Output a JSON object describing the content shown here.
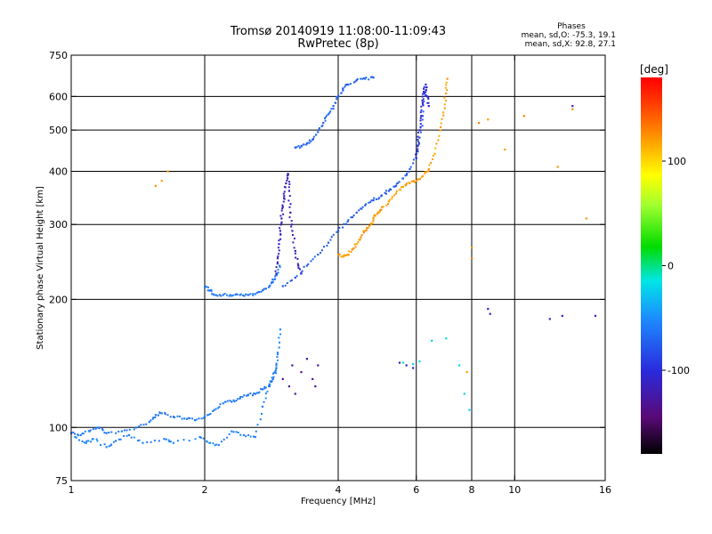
{
  "chart_data": {
    "type": "scatter",
    "title": "Tromsø 20140919 11:08:00-11:09:43",
    "subtitle": "RwPretec (8p)",
    "info_title": "Phases",
    "info_lines": [
      "mean, sd,O: -75.3, 19.1",
      "mean, sd,X:  92.8, 27.1"
    ],
    "xlabel": "Frequency [MHz]",
    "ylabel": "Stationary phase Virtual Height [km]",
    "x_scale": "log",
    "y_scale": "log",
    "xlim": [
      1,
      16
    ],
    "ylim": [
      75,
      750
    ],
    "x_ticks": [
      {
        "value": 1,
        "label": "1"
      },
      {
        "value": 2,
        "label": "2"
      },
      {
        "value": 4,
        "label": "4"
      },
      {
        "value": 6,
        "label": "6"
      },
      {
        "value": 8,
        "label": "8"
      },
      {
        "value": 10,
        "label": "10"
      },
      {
        "value": 16,
        "label": "16"
      }
    ],
    "y_ticks": [
      {
        "value": 75,
        "label": "75"
      },
      {
        "value": 100,
        "label": "100"
      },
      {
        "value": 200,
        "label": "200"
      },
      {
        "value": 300,
        "label": "300"
      },
      {
        "value": 400,
        "label": "400"
      },
      {
        "value": 500,
        "label": "500"
      },
      {
        "value": 600,
        "label": "600"
      },
      {
        "value": 750,
        "label": "750"
      }
    ],
    "grid_x": [
      2,
      4,
      6,
      8,
      10
    ],
    "grid_y": [
      100,
      200,
      300,
      400,
      500,
      600
    ],
    "colorbar": {
      "label": "[deg]",
      "range": [
        -180,
        180
      ],
      "ticks": [
        {
          "value": 100,
          "label": "100"
        },
        {
          "value": 0,
          "label": "0"
        },
        {
          "value": -100,
          "label": "-100"
        }
      ]
    },
    "series": [
      {
        "role": "e-trace",
        "phase": -60,
        "x": [
          1.0,
          1.05,
          1.1,
          1.15,
          1.2,
          1.3,
          1.4,
          1.5,
          1.55,
          1.6,
          1.7,
          1.8,
          1.9,
          2.0,
          2.1,
          2.2,
          2.3,
          2.4,
          2.5,
          2.6,
          2.7,
          2.8,
          2.85,
          2.9
        ],
        "y": [
          97,
          96,
          98,
          100,
          97,
          98,
          100,
          103,
          107,
          108,
          106,
          105,
          104,
          106,
          110,
          114,
          115,
          117,
          119,
          120,
          123,
          126,
          130,
          138
        ]
      },
      {
        "role": "es-scatter",
        "phase": -55,
        "x": [
          1.02,
          1.08,
          1.12,
          1.2,
          1.26,
          1.35,
          1.45,
          1.62,
          1.7,
          1.95,
          2.05,
          2.15,
          2.3,
          2.45,
          2.6,
          2.7,
          2.8,
          2.9,
          2.92,
          2.96
        ],
        "y": [
          95,
          92,
          94,
          90,
          93,
          96,
          92,
          94,
          92,
          95,
          92,
          91,
          98,
          96,
          95,
          112,
          125,
          140,
          150,
          170
        ]
      },
      {
        "role": "f1-cusp",
        "phase": -60,
        "x": [
          2.0,
          2.05,
          2.1,
          2.2,
          2.3,
          2.4,
          2.5,
          2.6,
          2.7,
          2.8,
          2.85,
          2.9,
          2.95
        ],
        "y": [
          215,
          210,
          205,
          205,
          204,
          205,
          205,
          206,
          210,
          215,
          220,
          228,
          240
        ]
      },
      {
        "role": "f1-cusp-o",
        "phase": -115,
        "x": [
          2.9,
          2.92,
          2.94,
          2.96,
          2.98,
          3.0,
          3.02,
          3.05,
          3.08,
          3.1,
          3.12,
          3.15,
          3.2,
          3.25,
          3.3
        ],
        "y": [
          230,
          250,
          270,
          290,
          310,
          330,
          350,
          375,
          395,
          360,
          320,
          290,
          260,
          240,
          230
        ]
      },
      {
        "role": "f2-o",
        "phase": -75,
        "x": [
          3.0,
          3.2,
          3.4,
          3.6,
          3.8,
          4.0,
          4.2,
          4.4,
          4.6,
          4.8,
          5.0,
          5.2,
          5.4,
          5.6,
          5.8,
          6.0,
          6.1,
          6.2,
          6.3
        ],
        "y": [
          215,
          225,
          240,
          255,
          272,
          290,
          305,
          320,
          333,
          342,
          350,
          360,
          370,
          385,
          405,
          440,
          480,
          540,
          620
        ]
      },
      {
        "role": "f2-o-cusp",
        "phase": -105,
        "x": [
          6.0,
          6.05,
          6.1,
          6.15,
          6.2,
          6.25,
          6.3,
          6.35,
          6.4
        ],
        "y": [
          430,
          460,
          500,
          540,
          580,
          610,
          640,
          600,
          570
        ]
      },
      {
        "role": "f2-x",
        "phase": 120,
        "x": [
          4.0,
          4.1,
          4.2,
          4.3,
          4.4,
          4.5,
          4.6,
          4.7,
          4.8,
          4.9,
          5.0,
          5.2,
          5.4,
          5.6,
          5.8,
          6.0,
          6.2,
          6.4,
          6.6,
          6.8,
          6.9,
          7.0,
          7.05
        ],
        "y": [
          255,
          253,
          255,
          262,
          270,
          280,
          290,
          298,
          308,
          318,
          325,
          340,
          355,
          368,
          375,
          380,
          390,
          405,
          440,
          500,
          550,
          610,
          660
        ]
      },
      {
        "role": "upper-trace",
        "phase": -70,
        "x": [
          3.2,
          3.3,
          3.4,
          3.5,
          3.6,
          3.7,
          3.8,
          3.9,
          4.0,
          4.1,
          4.2,
          4.4,
          4.6,
          4.8
        ],
        "y": [
          455,
          458,
          465,
          475,
          495,
          520,
          545,
          570,
          600,
          625,
          640,
          655,
          660,
          665
        ]
      },
      {
        "role": "scatter-low-x",
        "phase": -130,
        "x": [
          3.0,
          3.1,
          3.15,
          3.2,
          3.3,
          3.4,
          3.5,
          3.55,
          3.6
        ],
        "y": [
          130,
          125,
          140,
          120,
          135,
          145,
          130,
          125,
          140
        ]
      },
      {
        "role": "scatter-high-x",
        "phase": 125,
        "x": [
          1.55,
          1.6,
          1.65,
          8.3,
          8.7,
          9.5,
          10.5,
          12.5,
          13.5,
          14.5,
          8.0,
          8.0,
          7.8
        ],
        "y": [
          370,
          380,
          400,
          520,
          530,
          450,
          540,
          410,
          560,
          310,
          265,
          250,
          135
        ]
      },
      {
        "role": "scatter-high-o",
        "phase": -110,
        "x": [
          8.7,
          8.8,
          12.0,
          12.8,
          13.5,
          15.2,
          5.5,
          5.7,
          5.9
        ],
        "y": [
          190,
          185,
          180,
          183,
          570,
          183,
          142,
          140,
          138
        ]
      },
      {
        "role": "scatter-mid",
        "phase": -20,
        "x": [
          5.6,
          5.9,
          6.1,
          6.5,
          7.0,
          7.5,
          7.7,
          7.9
        ],
        "y": [
          142,
          141,
          143,
          160,
          162,
          140,
          120,
          110
        ]
      }
    ]
  }
}
